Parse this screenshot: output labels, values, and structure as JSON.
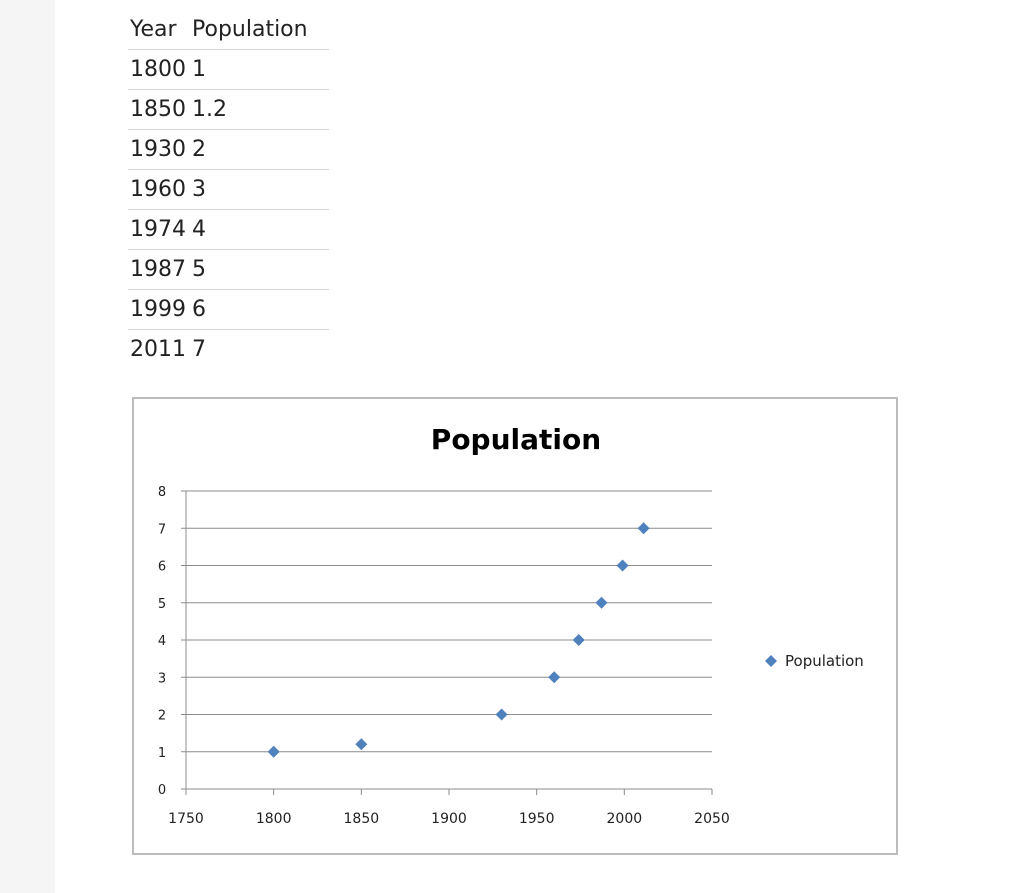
{
  "table": {
    "headers": [
      "Year",
      "Population"
    ],
    "rows": [
      [
        "1800",
        "1"
      ],
      [
        "1850",
        "1.2"
      ],
      [
        "1930",
        "2"
      ],
      [
        "1960",
        "3"
      ],
      [
        "1974",
        "4"
      ],
      [
        "1987",
        "5"
      ],
      [
        "1999",
        "6"
      ],
      [
        "2011",
        "7"
      ]
    ]
  },
  "chart_data": {
    "type": "scatter",
    "title": "Population",
    "xlabel": "",
    "ylabel": "",
    "xlim": [
      1750,
      2050
    ],
    "ylim": [
      0,
      8
    ],
    "xticks": [
      1750,
      1800,
      1850,
      1900,
      1950,
      2000,
      2050
    ],
    "yticks": [
      0,
      1,
      2,
      3,
      4,
      5,
      6,
      7,
      8
    ],
    "grid": true,
    "legend_position": "right",
    "series": [
      {
        "name": "Population",
        "color": "#4f81bd",
        "marker": "diamond",
        "x": [
          1800,
          1850,
          1930,
          1960,
          1974,
          1987,
          1999,
          2011
        ],
        "y": [
          1,
          1.2,
          2,
          3,
          4,
          5,
          6,
          7
        ]
      }
    ]
  }
}
